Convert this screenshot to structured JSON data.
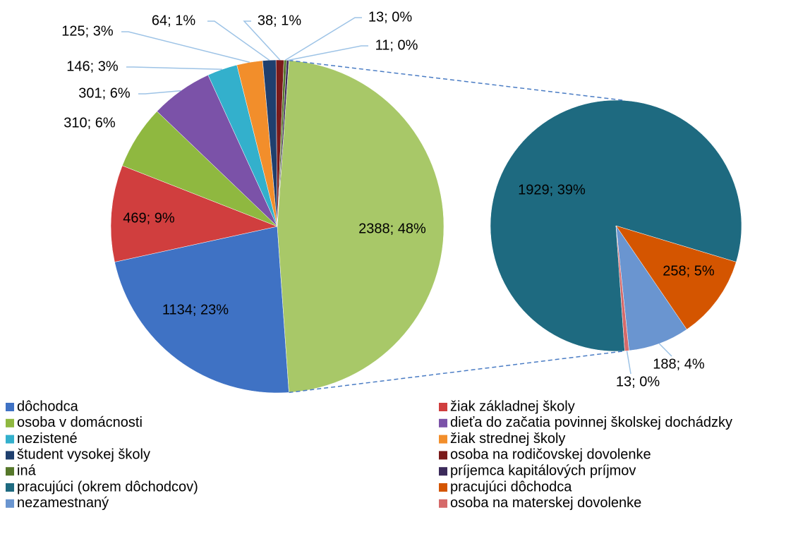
{
  "chart_data": {
    "type": "pie_of_pie",
    "categories": [
      "dôchodca",
      "žiak základnej školy",
      "osoba v domácnosti",
      "dieťa do začatia povinnej školskej dochádzky",
      "nezistené",
      "žiak strednej školy",
      "študent vysokej školy",
      "osoba na rodičovskej dovolenke",
      "iná",
      "príjemca kapitálových príjmov",
      null
    ],
    "values": [
      1134,
      469,
      310,
      301,
      146,
      125,
      64,
      38,
      13,
      11,
      2388
    ],
    "value_labels": [
      "1134; 23%",
      "469; 9%",
      "310; 6%",
      "301; 6%",
      "146; 3%",
      "125; 3%",
      "64; 1%",
      "38; 1%",
      "13; 0%",
      "11; 0%",
      "2388; 48%"
    ],
    "colors": [
      "#3f72c4",
      "#d03e3e",
      "#8fb840",
      "#7b52a8",
      "#33b0cc",
      "#f28e2b",
      "#1f3f6e",
      "#7a1a1a",
      "#56782a",
      "#3b2a5a",
      "#a8c868"
    ],
    "secondary": {
      "categories": [
        "pracujúci (okrem dôchodcov)",
        "pracujúci dôchodca",
        "nezamestnaný",
        "osoba na materskej dovolenke"
      ],
      "values": [
        1929,
        258,
        188,
        13
      ],
      "value_labels": [
        "1929; 39%",
        "258; 5%",
        "188; 4%",
        "13; 0%"
      ],
      "colors": [
        "#1e6a80",
        "#d45500",
        "#6a95d0",
        "#d66a6a"
      ]
    }
  }
}
